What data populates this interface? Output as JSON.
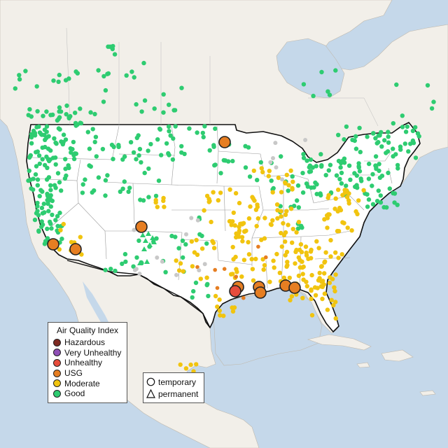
{
  "legend": {
    "title": "Air Quality Index",
    "categories": [
      {
        "label": "Hazardous",
        "color": "#7e2a22"
      },
      {
        "label": "Very Unhealthy",
        "color": "#8f4fb6"
      },
      {
        "label": "Unhealthy",
        "color": "#e74c3c"
      },
      {
        "label": "USG",
        "color": "#e67e22"
      },
      {
        "label": "Moderate",
        "color": "#f1c40f"
      },
      {
        "label": "Good",
        "color": "#2ecc71"
      }
    ]
  },
  "monitor_types": {
    "temporary": {
      "label": "temporary",
      "shape": "circle-outline-icon"
    },
    "permanent": {
      "label": "permanent",
      "shape": "triangle-outline-icon"
    }
  },
  "colors": {
    "water": "#c5d8ea",
    "land": "#f2efe9",
    "usa_fill": "#ffffff",
    "no_data": "#c8c8c8"
  }
}
